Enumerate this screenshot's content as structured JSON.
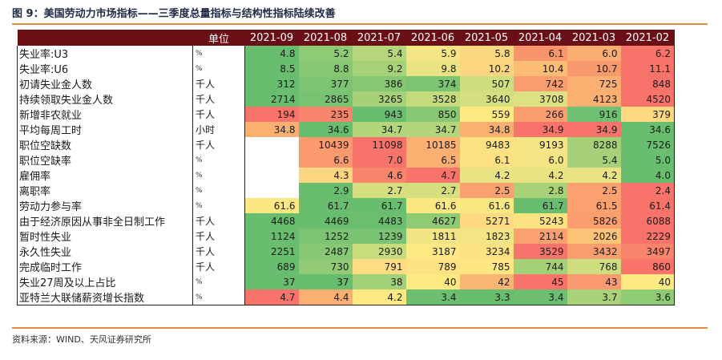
{
  "title": "图 9：美国劳动力市场指标——三季度总量指标与结构性指标陆续改善",
  "source": "资料来源：WIND、天风证券研究所",
  "header": {
    "unit_label": "单位",
    "columns": [
      "2021-09",
      "2021-08",
      "2021-07",
      "2021-06",
      "2021-05",
      "2021-04",
      "2021-03",
      "2021-02"
    ]
  },
  "rows": [
    {
      "label": "失业率:U3",
      "unit": "%",
      "values": [
        "4.8",
        "5.2",
        "5.4",
        "5.9",
        "5.8",
        "6.1",
        "6.0",
        "6.2"
      ],
      "colors": [
        "#68bd6f",
        "#8fca74",
        "#b5d67a",
        "#f5e584",
        "#f9d680",
        "#f8956c",
        "#faae72",
        "#f8736a"
      ]
    },
    {
      "label": "失业率:U6",
      "unit": "%",
      "values": [
        "8.5",
        "8.8",
        "9.2",
        "9.8",
        "10.2",
        "10.4",
        "10.7",
        "11.1"
      ],
      "colors": [
        "#68bd6f",
        "#86c773",
        "#a8d278",
        "#eae383",
        "#fbd580",
        "#fbbd76",
        "#f8986d",
        "#f8736a"
      ]
    },
    {
      "label": "初请失业金人数",
      "unit": "千人",
      "values": [
        "312",
        "377",
        "386",
        "374",
        "507",
        "742",
        "725",
        "848"
      ],
      "colors": [
        "#68bd6f",
        "#7ec472",
        "#86c773",
        "#7cc472",
        "#cfdd7f",
        "#fa9d6e",
        "#fbb072",
        "#f8736a"
      ]
    },
    {
      "label": "持续领取失业金人数",
      "unit": "千人",
      "values": [
        "2714",
        "2865",
        "3265",
        "3528",
        "3640",
        "3708",
        "4123",
        "4520"
      ],
      "colors": [
        "#68bd6f",
        "#78c372",
        "#a6d178",
        "#c5da7d",
        "#d3df80",
        "#dce181",
        "#fbb072",
        "#f8736a"
      ]
    },
    {
      "label": "新增非农就业",
      "unit": "千人",
      "values": [
        "194",
        "235",
        "943",
        "850",
        "559",
        "266",
        "916",
        "379"
      ],
      "colors": [
        "#f8736a",
        "#f9846c",
        "#68bd6f",
        "#88c873",
        "#fee983",
        "#fc9d6f",
        "#6fc071",
        "#ffd882"
      ]
    },
    {
      "label": "平均每周工时",
      "unit": "小时",
      "values": [
        "34.8",
        "34.6",
        "34.7",
        "34.7",
        "34.8",
        "34.9",
        "34.9",
        "34.6"
      ],
      "colors": [
        "#fbb072",
        "#68bd6f",
        "#b3d67a",
        "#b3d67a",
        "#fbb072",
        "#f8736a",
        "#f8736a",
        "#68bd6f"
      ]
    },
    {
      "label": "职位空缺数",
      "unit": "千人",
      "values": [
        "",
        "10439",
        "11098",
        "10185",
        "9483",
        "9193",
        "8288",
        "7526"
      ],
      "colors": [
        "#ffffff",
        "#fa9a6e",
        "#f8736a",
        "#fbb072",
        "#fee282",
        "#f5e584",
        "#a6d178",
        "#68bd6f"
      ]
    },
    {
      "label": "职位空缺率",
      "unit": "%",
      "values": [
        "",
        "6.6",
        "7.0",
        "6.5",
        "6.1",
        "6.0",
        "5.4",
        "5.0"
      ],
      "colors": [
        "#ffffff",
        "#fa9a6e",
        "#f8736a",
        "#fbb072",
        "#fee282",
        "#f5e584",
        "#a6d178",
        "#68bd6f"
      ]
    },
    {
      "label": "雇佣率",
      "unit": "%",
      "values": [
        "",
        "4.3",
        "4.6",
        "4.7",
        "4.2",
        "4.2",
        "4.2",
        "4.0"
      ],
      "colors": [
        "#ffffff",
        "#fbd580",
        "#f9846c",
        "#f8736a",
        "#e9e383",
        "#e9e383",
        "#e9e383",
        "#68bd6f"
      ]
    },
    {
      "label": "离职率",
      "unit": "%",
      "values": [
        "",
        "2.9",
        "2.7",
        "2.7",
        "2.5",
        "2.8",
        "2.5",
        "2.4"
      ],
      "colors": [
        "#ffffff",
        "#68bd6f",
        "#d6df80",
        "#d6df80",
        "#fba06f",
        "#a7d278",
        "#fba06f",
        "#f8736a"
      ]
    },
    {
      "label": "劳动力参与率",
      "unit": "%",
      "values": [
        "61.6",
        "61.7",
        "61.7",
        "61.6",
        "61.6",
        "61.7",
        "61.5",
        "61.4"
      ],
      "colors": [
        "#fbe882",
        "#68bd6f",
        "#68bd6f",
        "#fbe882",
        "#fbe882",
        "#68bd6f",
        "#fba06f",
        "#f8736a"
      ]
    },
    {
      "label": "由于经济原因从事非全日制工作",
      "unit": "千人",
      "values": [
        "4468",
        "4469",
        "4483",
        "4627",
        "5271",
        "5243",
        "5826",
        "6088"
      ],
      "colors": [
        "#68bd6f",
        "#69bd6f",
        "#6dbf70",
        "#8fca74",
        "#feda82",
        "#fce382",
        "#fb9e6e",
        "#f8736a"
      ]
    },
    {
      "label": "暂时性失业",
      "unit": "千人",
      "values": [
        "1124",
        "1252",
        "1239",
        "1811",
        "1823",
        "2114",
        "2026",
        "2229"
      ],
      "colors": [
        "#68bd6f",
        "#7cc472",
        "#7ac372",
        "#f1e583",
        "#f4e584",
        "#fba06f",
        "#fcc377",
        "#f8736a"
      ]
    },
    {
      "label": "永久性失业",
      "unit": "千人",
      "values": [
        "2251",
        "2487",
        "2930",
        "3187",
        "3234",
        "3529",
        "3432",
        "3497"
      ],
      "colors": [
        "#68bd6f",
        "#86c773",
        "#c8db7d",
        "#fee882",
        "#fde182",
        "#f8736a",
        "#fb9e6e",
        "#f9846c"
      ]
    },
    {
      "label": "完成临时工作",
      "unit": "千人",
      "values": [
        "689",
        "730",
        "791",
        "789",
        "785",
        "744",
        "768",
        "860"
      ],
      "colors": [
        "#68bd6f",
        "#92cb75",
        "#fedd82",
        "#fee182",
        "#fee783",
        "#a4d078",
        "#d0dd7f",
        "#f8736a"
      ]
    },
    {
      "label": "失业27周及以上占比",
      "unit": "%",
      "values": [
        "37",
        "37",
        "38",
        "40",
        "42",
        "45",
        "43",
        "40"
      ],
      "colors": [
        "#68bd6f",
        "#68bd6f",
        "#a2d078",
        "#fee983",
        "#fbb573",
        "#f8736a",
        "#fa9a6e",
        "#fee983"
      ]
    },
    {
      "label": "亚特兰大联储薪资增长指数",
      "unit": "%",
      "values": [
        "4.7",
        "4.4",
        "4.2",
        "3.4",
        "3.3",
        "3.4",
        "3.7",
        "3.6"
      ],
      "colors": [
        "#f8736a",
        "#fbb072",
        "#fee983",
        "#6cbf70",
        "#68bd6f",
        "#6cbf70",
        "#a9d279",
        "#8fca74"
      ]
    }
  ]
}
